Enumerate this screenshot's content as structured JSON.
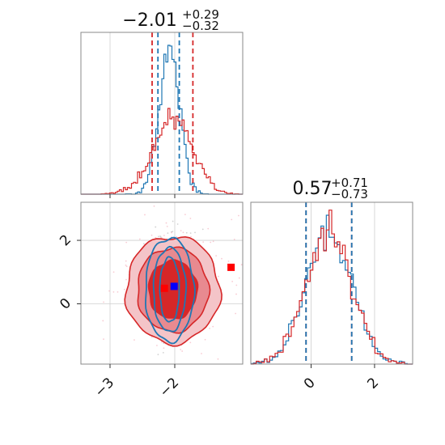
{
  "chart_data": {
    "type": "corner",
    "parameters": [
      {
        "title_value": "−2.01",
        "title_plus": "+0.29",
        "title_minus": "−0.32",
        "xlim": [
          -3.45,
          -0.95
        ],
        "tick_values": [
          -3,
          -2
        ],
        "tick_labels": [
          "−3",
          "−2"
        ],
        "quantile_lines": [
          {
            "color": "#d62728",
            "values": [
              -2.35,
              -1.72
            ]
          },
          {
            "color": "#1f77b4",
            "values": [
              -2.26,
              -1.93
            ]
          }
        ]
      },
      {
        "title_value": "0.57",
        "title_plus": "+0.71",
        "title_minus": "−0.73",
        "xlim": [
          -1.9,
          3.2
        ],
        "tick_values": [
          0,
          2
        ],
        "tick_labels": [
          "0",
          "2"
        ],
        "quantile_lines": [
          {
            "color": "#d62728",
            "values": [
              -0.16,
              1.28
            ]
          },
          {
            "color": "#1f77b4",
            "values": [
              -0.16,
              1.28
            ]
          }
        ]
      }
    ],
    "scatter_panel": {
      "xlim": [
        -3.45,
        -0.95
      ],
      "ylim": [
        -1.9,
        3.2
      ],
      "y_tick_values": [
        0,
        2
      ],
      "y_tick_labels": [
        "0",
        "2"
      ],
      "markers": [
        {
          "color": "#ff0000",
          "x": -2.16,
          "y": 0.49
        },
        {
          "color": "#0000ff",
          "x": -2.01,
          "y": 0.55
        },
        {
          "color": "#ff0000",
          "x": -1.13,
          "y": 1.15
        }
      ]
    },
    "series": [
      {
        "color": "#d62728",
        "mean_x": -2.03,
        "sd_x": 0.3,
        "mean_y": 0.57,
        "sd_y": 0.72
      },
      {
        "color": "#1f77b4",
        "mean_x": -2.08,
        "sd_x": 0.16,
        "mean_y": 0.57,
        "sd_y": 0.72
      }
    ],
    "grid": true
  }
}
